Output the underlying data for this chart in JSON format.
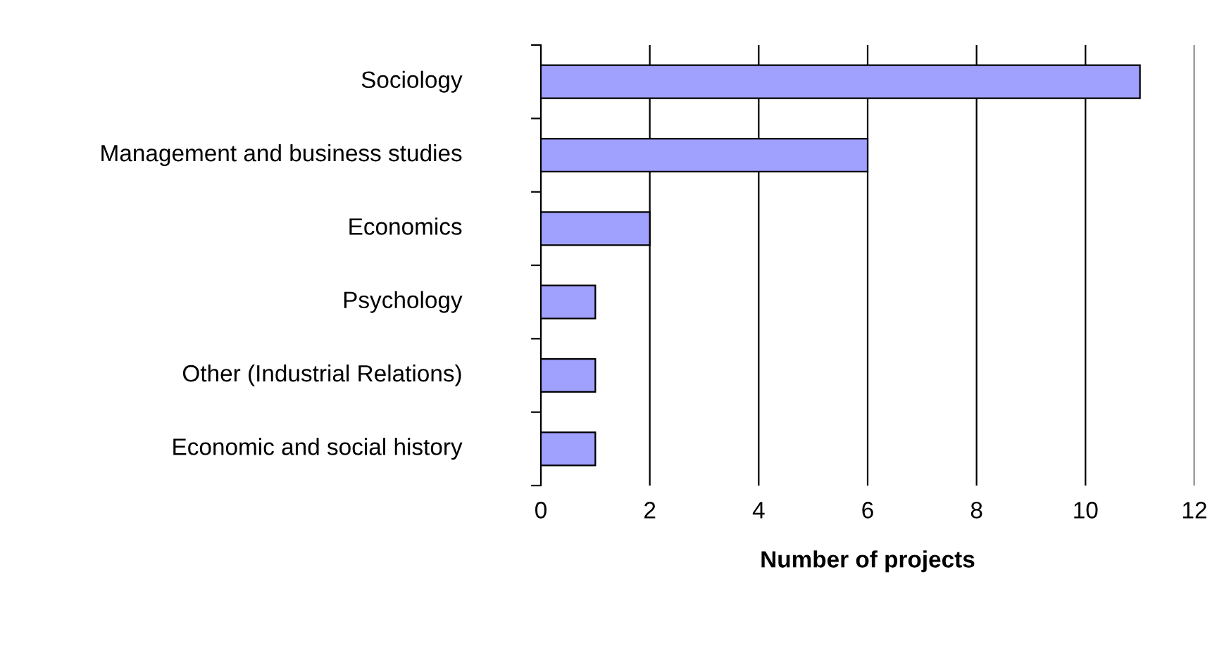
{
  "chart_data": {
    "type": "bar",
    "orientation": "horizontal",
    "xlabel": "Number of projects",
    "categories": [
      "Sociology",
      "Management and business studies",
      "Economics",
      "Psychology",
      "Other (Industrial Relations)",
      "Economic and social history"
    ],
    "values": [
      11,
      6,
      2,
      1,
      1,
      1
    ],
    "color": "#a0a0ff",
    "xlim": [
      0,
      12
    ],
    "xticks": [
      0,
      2,
      4,
      6,
      8,
      10,
      12
    ],
    "grid": "x",
    "legend": false
  }
}
